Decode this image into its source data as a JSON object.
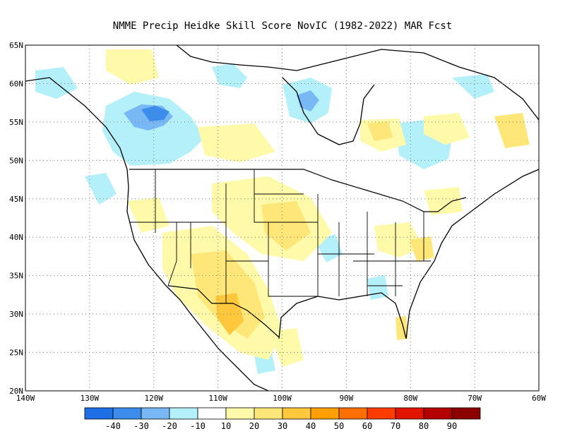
{
  "title": "NMME Precip Heidke Skill Score NovIC (1982-2022) MAR Fcst",
  "map": {
    "lon_range": [
      -140,
      -60
    ],
    "lat_range": [
      20,
      65
    ],
    "lat_labels": [
      "65N",
      "60N",
      "55N",
      "50N",
      "45N",
      "40N",
      "35N",
      "30N",
      "25N",
      "20N"
    ],
    "lon_labels": [
      "140W",
      "130W",
      "120W",
      "110W",
      "100W",
      "90W",
      "80W",
      "70W",
      "60W"
    ],
    "grid": "dotted"
  },
  "colorbar": {
    "colors": [
      "#1e6ee6",
      "#3c8ceb",
      "#78b9f5",
      "#b4f0fa",
      "#ffffff",
      "#fffaaa",
      "#ffe678",
      "#ffc83c",
      "#ffa000",
      "#ff6e00",
      "#ff3c00",
      "#e11400",
      "#b40000",
      "#8c0000"
    ],
    "labels": [
      "-40",
      "-30",
      "-20",
      "-10",
      "10",
      "20",
      "30",
      "40",
      "50",
      "60",
      "70",
      "80",
      "90"
    ]
  },
  "chart_data": {
    "type": "heatmap",
    "title": "NMME Precip Heidke Skill Score NovIC (1982-2022) MAR Fcst",
    "x_label": "",
    "y_label": "",
    "xlim": [
      -140,
      -60
    ],
    "ylim": [
      20,
      65
    ],
    "levels": [
      -40,
      -30,
      -20,
      -10,
      10,
      20,
      30,
      40,
      50,
      60,
      70,
      80,
      90
    ],
    "regions": [
      {
        "lon": -120,
        "lat": 55,
        "value": -30
      },
      {
        "lon": -123,
        "lat": 52,
        "value": -20
      },
      {
        "lon": -110,
        "lat": 58,
        "value": -15
      },
      {
        "lon": -92,
        "lat": 56,
        "value": -25
      },
      {
        "lon": -108,
        "lat": 30,
        "value": 35
      },
      {
        "lon": -112,
        "lat": 35,
        "value": 25
      },
      {
        "lon": -97,
        "lat": 43,
        "value": 25
      },
      {
        "lon": -84,
        "lat": 52,
        "value": 25
      },
      {
        "lon": -93,
        "lat": 38,
        "value": -15
      },
      {
        "lon": -88,
        "lat": 40,
        "value": 20
      }
    ]
  }
}
